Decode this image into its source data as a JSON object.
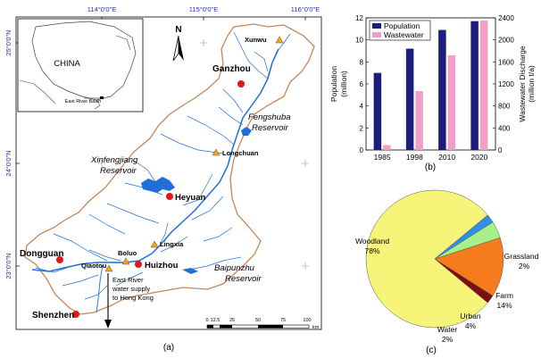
{
  "map": {
    "lon_ticks": [
      "114°0'0\"E",
      "115°0'0\"E",
      "116°0'0\"E"
    ],
    "lat_ticks": [
      "25°0'0\"N",
      "24°0'0\"N",
      "23°0'0\"N"
    ],
    "inset": {
      "country": "CHINA",
      "basin": "East River Basin"
    },
    "cities": [
      {
        "name": "Ganzhou"
      },
      {
        "name": "Heyuan"
      },
      {
        "name": "Dongguan"
      },
      {
        "name": "Huizhou"
      },
      {
        "name": "Shenzhen"
      }
    ],
    "stations": [
      {
        "name": "Xunwu"
      },
      {
        "name": "Longchuan"
      },
      {
        "name": "Lingxia"
      },
      {
        "name": "Boluo"
      },
      {
        "name": "Qiaotou"
      }
    ],
    "reservoirs": [
      {
        "lines": [
          "Fengshuba",
          "Reservoir"
        ]
      },
      {
        "lines": [
          "Xinfengjiang",
          "Reservoir"
        ]
      },
      {
        "lines": [
          "Baipunzhu",
          "Reservoir"
        ]
      }
    ],
    "water_supply": [
      "East River",
      "water supply",
      "to Hong Kong"
    ],
    "north_label": "N",
    "scale": {
      "ticks": [
        "0",
        "12.5",
        "25",
        "50",
        "75",
        "100"
      ],
      "unit": "km"
    },
    "panel_label": "(a)"
  },
  "chart_data": [
    {
      "type": "bar",
      "categories": [
        "1985",
        "1998",
        "2010",
        "2020"
      ],
      "series": [
        {
          "name": "Population",
          "axis": "left",
          "color": "#1c1c7c",
          "values": [
            7.0,
            9.2,
            10.9,
            11.7
          ]
        },
        {
          "name": "Wastewater",
          "axis": "right",
          "color": "#f0a0c8",
          "values": [
            90,
            1070,
            1720,
            2350
          ]
        }
      ],
      "ylabel_left": [
        "Population",
        "(million)"
      ],
      "ylabel_right": [
        "Wastewater Discharge",
        "(million t/a)"
      ],
      "ylim_left": [
        0,
        12
      ],
      "ylim_right": [
        0,
        2400
      ],
      "yticks_left": [
        "0",
        "2",
        "4",
        "6",
        "8",
        "10",
        "12"
      ],
      "yticks_right": [
        "0",
        "400",
        "800",
        "1200",
        "1600",
        "2000",
        "2400"
      ],
      "legend": "top-left",
      "panel_label": "(b)"
    },
    {
      "type": "pie",
      "slices": [
        {
          "name": "Woodland",
          "label": "78%",
          "value": 78,
          "color": "#f6f57a"
        },
        {
          "name": "Grassland",
          "label": "2%",
          "value": 2,
          "color": "#7a1010"
        },
        {
          "name": "Farm",
          "label": "14%",
          "value": 14,
          "color": "#f57b1c"
        },
        {
          "name": "Urban",
          "label": "4%",
          "value": 4,
          "color": "#a8f08a"
        },
        {
          "name": "Water",
          "label": "2%",
          "value": 2,
          "color": "#2e8ee8"
        }
      ],
      "panel_label": "(c)"
    }
  ]
}
